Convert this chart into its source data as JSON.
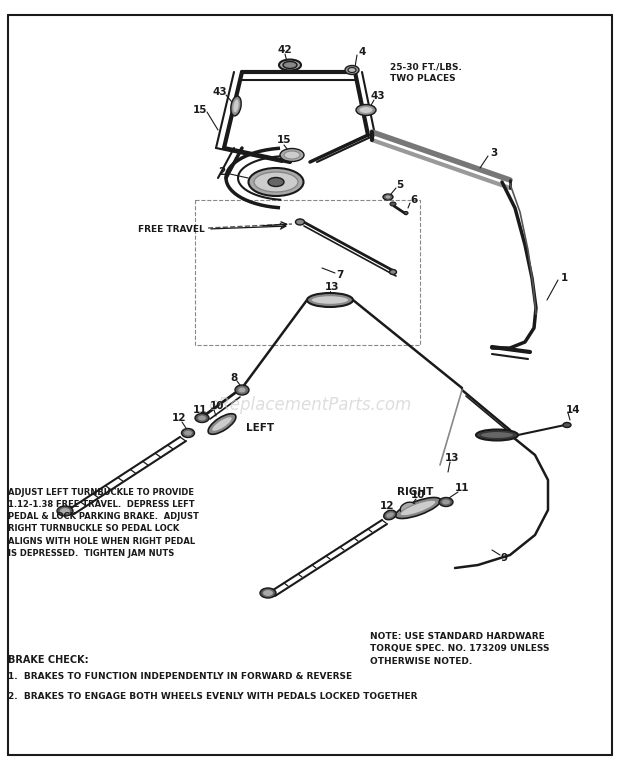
{
  "bg_color": "#ffffff",
  "diagram_color": "#1a1a1a",
  "watermark": "eReplacementParts.com",
  "note_text": "NOTE: USE STANDARD HARDWARE\nTORQUE SPEC. NO. 173209 UNLESS\nOTHERWISE NOTED.",
  "brake_check_title": "BRAKE CHECK:",
  "brake_check_1": "1.  BRAKES TO FUNCTION INDEPENDENTLY IN FORWARD & REVERSE",
  "brake_check_2": "2.  BRAKES TO ENGAGE BOTH WHEELS EVENLY WITH PEDALS LOCKED TOGETHER",
  "adjust_text": "ADJUST LEFT TURNBUCKLE TO PROVIDE\n1.12-1.38 FREE TRAVEL.  DEPRESS LEFT\nPEDAL & LOCK PARKING BRAKE.  ADJUST\nRIGHT TURNBUCKLE SO PEDAL LOCK\nALIGNS WITH HOLE WHEN RIGHT PEDAL\nIS DEPRESSED.  TIGHTEN JAM NUTS",
  "free_travel_label": "FREE TRAVEL",
  "torque_label": "25-30 FT./LBS.\nTWO PLACES",
  "left_label": "LEFT",
  "right_label": "RIGHT"
}
